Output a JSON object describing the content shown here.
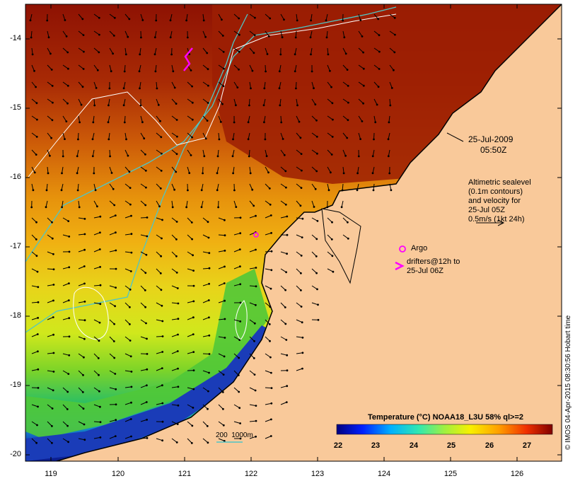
{
  "map": {
    "date": "25-Jul-2009",
    "time": "05:50Z",
    "altimetry_note": [
      "Altimetric sealevel",
      "(0.1m contours)",
      "and velocity for",
      "25-Jul 05Z",
      "0.5m/s (1kt 24h)"
    ],
    "legend_argo": "Argo",
    "legend_drifters": [
      "drifters@12h to",
      "25-Jul 06Z"
    ],
    "bathy_label": "200  1000m",
    "colorbar_title": "Temperature (°C) NOAA18_L3U 58% ql>=2",
    "colorbar_ticks": [
      "22",
      "23",
      "24",
      "25",
      "26",
      "27"
    ],
    "credit": "© IMOS 04-Apr-2015 08:30:56 Hobart time",
    "lat_labels": [
      "-14",
      "-15",
      "-16",
      "-17",
      "-18",
      "-19",
      "-20"
    ],
    "lon_labels": [
      "119",
      "120",
      "121",
      "122",
      "123",
      "124",
      "125",
      "126"
    ],
    "colors": {
      "land": "#f9c99a",
      "warm": "#9c1e04",
      "cool": "#0a1a9a",
      "drifter": "#ff00ff",
      "isobath": "#4fc6c6"
    }
  }
}
